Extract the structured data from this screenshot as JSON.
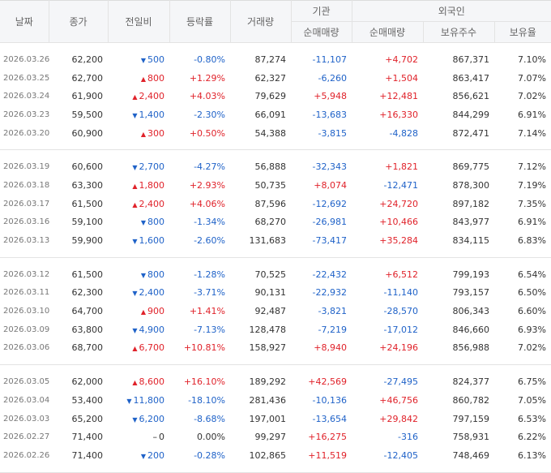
{
  "headers": {
    "date": "날짜",
    "close": "종가",
    "change": "전일비",
    "rate": "등락률",
    "volume": "거래량",
    "institution": "기관",
    "institution_net": "순매매량",
    "foreign": "외국인",
    "foreign_net": "순매매량",
    "foreign_shares": "보유주수",
    "foreign_ratio": "보유율"
  },
  "colors": {
    "up": "#e0222a",
    "down": "#1f62c8",
    "flat": "#333333"
  },
  "groups": [
    [
      {
        "date": "2026.03.26",
        "close": "62,200",
        "dir": "down",
        "change": "500",
        "rate": "-0.80%",
        "volume": "87,274",
        "inst": "-11,107",
        "foreign": "+4,702",
        "shares": "867,371",
        "ratio": "7.10%"
      },
      {
        "date": "2026.03.25",
        "close": "62,700",
        "dir": "up",
        "change": "800",
        "rate": "+1.29%",
        "volume": "62,327",
        "inst": "-6,260",
        "foreign": "+1,504",
        "shares": "863,417",
        "ratio": "7.07%"
      },
      {
        "date": "2026.03.24",
        "close": "61,900",
        "dir": "up",
        "change": "2,400",
        "rate": "+4.03%",
        "volume": "79,629",
        "inst": "+5,948",
        "foreign": "+12,481",
        "shares": "856,621",
        "ratio": "7.02%"
      },
      {
        "date": "2026.03.23",
        "close": "59,500",
        "dir": "down",
        "change": "1,400",
        "rate": "-2.30%",
        "volume": "66,091",
        "inst": "-13,683",
        "foreign": "+16,330",
        "shares": "844,299",
        "ratio": "6.91%"
      },
      {
        "date": "2026.03.20",
        "close": "60,900",
        "dir": "up",
        "change": "300",
        "rate": "+0.50%",
        "volume": "54,388",
        "inst": "-3,815",
        "foreign": "-4,828",
        "shares": "872,471",
        "ratio": "7.14%"
      }
    ],
    [
      {
        "date": "2026.03.19",
        "close": "60,600",
        "dir": "down",
        "change": "2,700",
        "rate": "-4.27%",
        "volume": "56,888",
        "inst": "-32,343",
        "foreign": "+1,821",
        "shares": "869,775",
        "ratio": "7.12%"
      },
      {
        "date": "2026.03.18",
        "close": "63,300",
        "dir": "up",
        "change": "1,800",
        "rate": "+2.93%",
        "volume": "50,735",
        "inst": "+8,074",
        "foreign": "-12,471",
        "shares": "878,300",
        "ratio": "7.19%"
      },
      {
        "date": "2026.03.17",
        "close": "61,500",
        "dir": "up",
        "change": "2,400",
        "rate": "+4.06%",
        "volume": "87,596",
        "inst": "-12,692",
        "foreign": "+24,720",
        "shares": "897,182",
        "ratio": "7.35%"
      },
      {
        "date": "2026.03.16",
        "close": "59,100",
        "dir": "down",
        "change": "800",
        "rate": "-1.34%",
        "volume": "68,270",
        "inst": "-26,981",
        "foreign": "+10,466",
        "shares": "843,977",
        "ratio": "6.91%"
      },
      {
        "date": "2026.03.13",
        "close": "59,900",
        "dir": "down",
        "change": "1,600",
        "rate": "-2.60%",
        "volume": "131,683",
        "inst": "-73,417",
        "foreign": "+35,284",
        "shares": "834,115",
        "ratio": "6.83%"
      }
    ],
    [
      {
        "date": "2026.03.12",
        "close": "61,500",
        "dir": "down",
        "change": "800",
        "rate": "-1.28%",
        "volume": "70,525",
        "inst": "-22,432",
        "foreign": "+6,512",
        "shares": "799,193",
        "ratio": "6.54%"
      },
      {
        "date": "2026.03.11",
        "close": "62,300",
        "dir": "down",
        "change": "2,400",
        "rate": "-3.71%",
        "volume": "90,131",
        "inst": "-22,932",
        "foreign": "-11,140",
        "shares": "793,157",
        "ratio": "6.50%"
      },
      {
        "date": "2026.03.10",
        "close": "64,700",
        "dir": "up",
        "change": "900",
        "rate": "+1.41%",
        "volume": "92,487",
        "inst": "-3,821",
        "foreign": "-28,570",
        "shares": "806,343",
        "ratio": "6.60%"
      },
      {
        "date": "2026.03.09",
        "close": "63,800",
        "dir": "down",
        "change": "4,900",
        "rate": "-7.13%",
        "volume": "128,478",
        "inst": "-7,219",
        "foreign": "-17,012",
        "shares": "846,660",
        "ratio": "6.93%"
      },
      {
        "date": "2026.03.06",
        "close": "68,700",
        "dir": "up",
        "change": "6,700",
        "rate": "+10.81%",
        "volume": "158,927",
        "inst": "+8,940",
        "foreign": "+24,196",
        "shares": "856,988",
        "ratio": "7.02%"
      }
    ],
    [
      {
        "date": "2026.03.05",
        "close": "62,000",
        "dir": "up",
        "change": "8,600",
        "rate": "+16.10%",
        "volume": "189,292",
        "inst": "+42,569",
        "foreign": "-27,495",
        "shares": "824,377",
        "ratio": "6.75%"
      },
      {
        "date": "2026.03.04",
        "close": "53,400",
        "dir": "down",
        "change": "11,800",
        "rate": "-18.10%",
        "volume": "281,436",
        "inst": "-10,136",
        "foreign": "+46,756",
        "shares": "860,782",
        "ratio": "7.05%"
      },
      {
        "date": "2026.03.03",
        "close": "65,200",
        "dir": "down",
        "change": "6,200",
        "rate": "-8.68%",
        "volume": "197,001",
        "inst": "-13,654",
        "foreign": "+29,842",
        "shares": "797,159",
        "ratio": "6.53%"
      },
      {
        "date": "2026.02.27",
        "close": "71,400",
        "dir": "flat",
        "change": "0",
        "rate": "0.00%",
        "volume": "99,297",
        "inst": "+16,275",
        "foreign": "-316",
        "shares": "758,931",
        "ratio": "6.22%"
      },
      {
        "date": "2026.02.26",
        "close": "71,400",
        "dir": "down",
        "change": "200",
        "rate": "-0.28%",
        "volume": "102,865",
        "inst": "+11,519",
        "foreign": "-12,405",
        "shares": "748,469",
        "ratio": "6.13%"
      }
    ]
  ]
}
